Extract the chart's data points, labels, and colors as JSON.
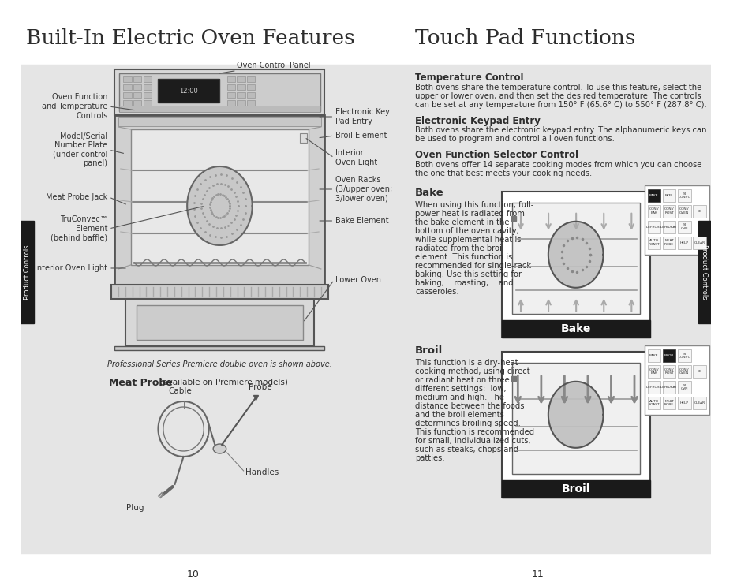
{
  "bg_color": "#e5e5e5",
  "white": "#ffffff",
  "dark_gray": "#2d2d2d",
  "black": "#1a1a1a",
  "line_color": "#555555",
  "label_color": "#333333",
  "left_title": "Built-In Electric Oven Features",
  "right_title": "Touch Pad Functions",
  "sec_temp": "Temperature Control",
  "sec_keypad": "Electronic Keypad Entry",
  "sec_function": "Oven Function Selector Control",
  "sec_bake": "Bake",
  "sec_broil": "Broil",
  "temp_lines": [
    "Both ovens share the temperature control. To use this feature, select the",
    "upper or lower oven, and then set the desired temperature. The controls",
    "can be set at any temperature from 150° F (65.6° C) to 550° F (287.8° C)."
  ],
  "keypad_lines": [
    "Both ovens share the electronic keypad entry. The alphanumeric keys can",
    "be used to program and control all oven functions."
  ],
  "function_lines": [
    "Both ovens offer 14 separate cooking modes from which you can choose",
    "the one that best meets your cooking needs."
  ],
  "bake_lines": [
    "When using this function, full-",
    "power heat is radiated from",
    "the bake element in the",
    "bottom of the oven cavity,",
    "while supplemental heat is",
    "radiated from the broil",
    "element. This function is",
    "recommended for single-rack",
    "baking. Use this setting for",
    "baking,    roasting,    and",
    "casseroles."
  ],
  "broil_lines": [
    "This function is a dry-heat",
    "cooking method, using direct",
    "or radiant heat on three",
    "different settings:  low,",
    "medium and high. The",
    "distance between the foods",
    "and the broil elements",
    "determines broiling speed.",
    "This function is recommended",
    "for small, individualized cuts,",
    "such as steaks, chops and",
    "patties."
  ],
  "left_labels": [
    "Oven Function\nand Temperature\nControls",
    "Model/Serial\nNumber Plate\n(under control\npanel)",
    "Meat Probe Jack",
    "TruConvec™\nElement\n(behind baffle)",
    "Interior Oven Light"
  ],
  "right_labels": [
    "Oven Control Panel",
    "Electronic Key\nPad Entry",
    "Broil Element",
    "Interior\nOven Light",
    "Oven Racks\n(3/upper oven;\n3/lower oven)",
    "Bake Element",
    "Lower Oven"
  ],
  "probe_labels": [
    "Cable",
    "Probe",
    "Handles",
    "Plug"
  ],
  "caption": "Professional Series Premiere double oven is shown above.",
  "meat_probe_bold": "Meat Probe",
  "meat_probe_light": " (available on Premiere models)",
  "page_left": "10",
  "page_right": "11",
  "tab_text": "Product Controls"
}
